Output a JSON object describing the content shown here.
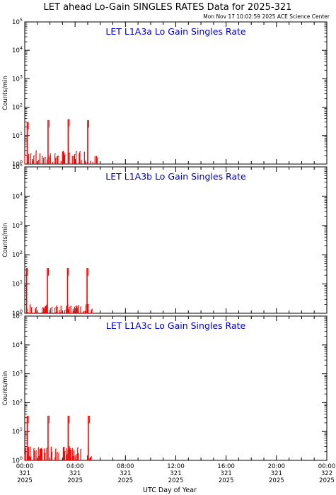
{
  "header": {
    "title": "LET ahead Lo-Gain SINGLES RATES Data for 2025-321",
    "timestamp": "Mon Nov 17 10:02:59 2025 ACE Science Center"
  },
  "xaxis": {
    "label": "UTC Day of Year",
    "ticks": [
      {
        "hour": 0,
        "time": "00:00",
        "doy": "321",
        "year": "2025"
      },
      {
        "hour": 4,
        "time": "04:00",
        "doy": "321",
        "year": "2025"
      },
      {
        "hour": 8,
        "time": "08:00",
        "doy": "321",
        "year": "2025"
      },
      {
        "hour": 12,
        "time": "12:00",
        "doy": "321",
        "year": "2025"
      },
      {
        "hour": 16,
        "time": "16:00",
        "doy": "321",
        "year": "2025"
      },
      {
        "hour": 20,
        "time": "20:00",
        "doy": "321",
        "year": "2025"
      },
      {
        "hour": 24,
        "time": "00:00",
        "doy": "322",
        "year": "2025"
      }
    ]
  },
  "colors": {
    "data": "#ff0000",
    "title": "#0000cc",
    "axis": "#000000"
  },
  "chart_data": [
    {
      "type": "line",
      "title": "LET L1A3a Lo Gain Singles Rate",
      "ylabel": "Counts/min",
      "yscale": "log",
      "ylim": [
        1,
        100000
      ],
      "xlim": [
        0,
        24
      ],
      "x_units": "hours UTC, day 321 2025",
      "grid": false,
      "y_ticks": [
        "10^0",
        "10^1",
        "10^2",
        "10^3",
        "10^4",
        "10^5"
      ],
      "spikes": [
        {
          "x": 0.2,
          "y": 30
        },
        {
          "x": 1.85,
          "y": 35
        },
        {
          "x": 3.45,
          "y": 38
        },
        {
          "x": 5.0,
          "y": 35
        }
      ],
      "baseline": {
        "x_range": [
          0,
          5.8
        ],
        "y": 1,
        "max_y": 3
      }
    },
    {
      "type": "line",
      "title": "LET L1A3b Lo Gain Singles Rate",
      "ylabel": "Counts/min",
      "yscale": "log",
      "ylim": [
        1,
        100000
      ],
      "xlim": [
        0,
        24
      ],
      "x_units": "hours UTC, day 321 2025",
      "grid": false,
      "y_ticks": [
        "10^0",
        "10^1",
        "10^2",
        "10^3",
        "10^4",
        "10^5"
      ],
      "spikes": [
        {
          "x": 0.15,
          "y": 35
        },
        {
          "x": 1.8,
          "y": 35
        },
        {
          "x": 3.4,
          "y": 35
        },
        {
          "x": 4.95,
          "y": 35
        }
      ],
      "baseline": {
        "x_range": [
          0,
          5.5
        ],
        "y": 1,
        "max_y": 2
      }
    },
    {
      "type": "line",
      "title": "LET L1A3c Lo Gain Singles Rate",
      "ylabel": "Counts/min",
      "yscale": "log",
      "ylim": [
        1,
        100000
      ],
      "xlim": [
        0,
        24
      ],
      "x_units": "hours UTC, day 321 2025",
      "grid": false,
      "y_ticks": [
        "10^0",
        "10^1",
        "10^2",
        "10^3",
        "10^4",
        "10^5"
      ],
      "spikes": [
        {
          "x": 0.2,
          "y": 35
        },
        {
          "x": 1.85,
          "y": 35
        },
        {
          "x": 3.45,
          "y": 35
        },
        {
          "x": 5.05,
          "y": 35
        }
      ],
      "baseline": {
        "x_range": [
          0,
          5.5
        ],
        "y": 1,
        "max_y": 3
      }
    }
  ]
}
